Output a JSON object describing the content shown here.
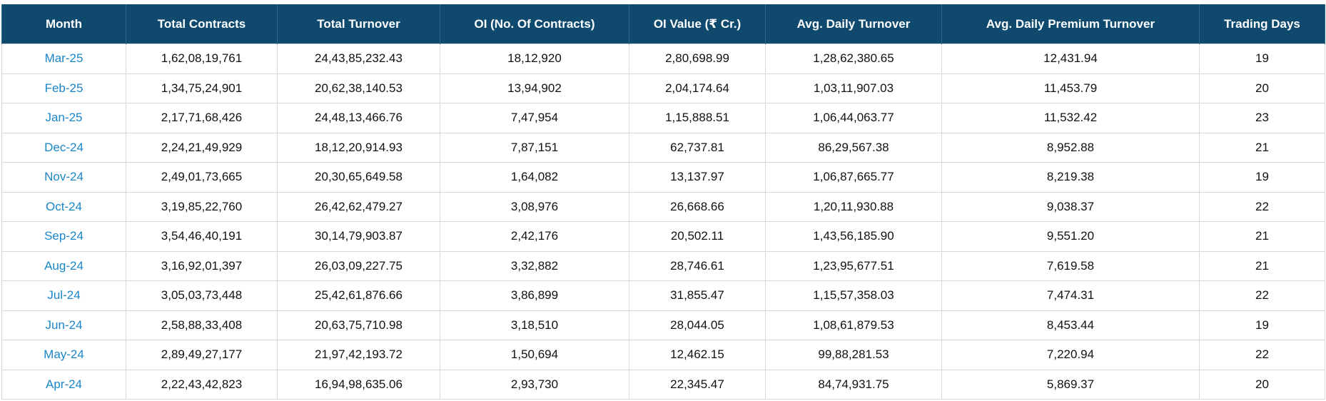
{
  "table": {
    "headers": [
      "Month",
      "Total Contracts",
      "Total Turnover",
      "OI (No. Of Contracts)",
      "OI Value (₹ Cr.)",
      "Avg. Daily Turnover",
      "Avg. Daily Premium Turnover",
      "Trading Days"
    ],
    "rows": [
      [
        "Mar-25",
        "1,62,08,19,761",
        "24,43,85,232.43",
        "18,12,920",
        "2,80,698.99",
        "1,28,62,380.65",
        "12,431.94",
        "19"
      ],
      [
        "Feb-25",
        "1,34,75,24,901",
        "20,62,38,140.53",
        "13,94,902",
        "2,04,174.64",
        "1,03,11,907.03",
        "11,453.79",
        "20"
      ],
      [
        "Jan-25",
        "2,17,71,68,426",
        "24,48,13,466.76",
        "7,47,954",
        "1,15,888.51",
        "1,06,44,063.77",
        "11,532.42",
        "23"
      ],
      [
        "Dec-24",
        "2,24,21,49,929",
        "18,12,20,914.93",
        "7,87,151",
        "62,737.81",
        "86,29,567.38",
        "8,952.88",
        "21"
      ],
      [
        "Nov-24",
        "2,49,01,73,665",
        "20,30,65,649.58",
        "1,64,082",
        "13,137.97",
        "1,06,87,665.77",
        "8,219.38",
        "19"
      ],
      [
        "Oct-24",
        "3,19,85,22,760",
        "26,42,62,479.27",
        "3,08,976",
        "26,668.66",
        "1,20,11,930.88",
        "9,038.37",
        "22"
      ],
      [
        "Sep-24",
        "3,54,46,40,191",
        "30,14,79,903.87",
        "2,42,176",
        "20,502.11",
        "1,43,56,185.90",
        "9,551.20",
        "21"
      ],
      [
        "Aug-24",
        "3,16,92,01,397",
        "26,03,09,227.75",
        "3,32,882",
        "28,746.61",
        "1,23,95,677.51",
        "7,619.58",
        "21"
      ],
      [
        "Jul-24",
        "3,05,03,73,448",
        "25,42,61,876.66",
        "3,86,899",
        "31,855.47",
        "1,15,57,358.03",
        "7,474.31",
        "22"
      ],
      [
        "Jun-24",
        "2,58,88,33,408",
        "20,63,75,710.98",
        "3,18,510",
        "28,044.05",
        "1,08,61,879.53",
        "8,453.44",
        "19"
      ],
      [
        "May-24",
        "2,89,49,27,177",
        "21,97,42,193.72",
        "1,50,694",
        "12,462.15",
        "99,88,281.53",
        "7,220.94",
        "22"
      ],
      [
        "Apr-24",
        "2,22,43,42,823",
        "16,94,98,635.06",
        "2,93,730",
        "22,345.47",
        "84,74,931.75",
        "5,869.37",
        "20"
      ]
    ]
  },
  "colors": {
    "header_bg": "#0f4a6e",
    "header_text": "#ffffff",
    "link": "#1a86c8",
    "border": "#d9d9d9"
  }
}
